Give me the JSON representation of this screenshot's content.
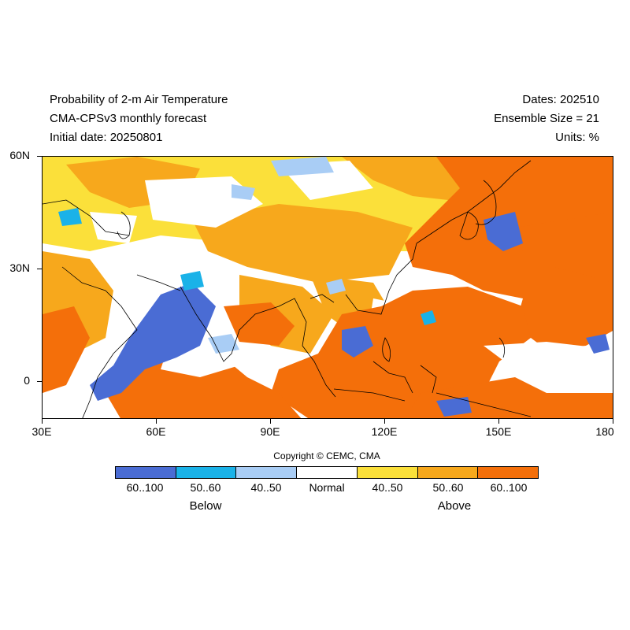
{
  "header": {
    "title": "Probability of 2-m Air Temperature",
    "model": "CMA-CPSv3 monthly forecast",
    "initial_date": "Initial date: 20250801",
    "dates": "Dates: 202510",
    "ensemble": "Ensemble Size = 21",
    "units": "Units: %"
  },
  "axes": {
    "lat_labels": [
      "60N",
      "30N",
      "0"
    ],
    "lon_labels": [
      "30E",
      "60E",
      "90E",
      "120E",
      "150E",
      "180"
    ]
  },
  "copyright": "Copyright © CEMC, CMA",
  "legend": {
    "items": [
      {
        "label": "60..100",
        "color": "#4a6cd4"
      },
      {
        "label": "50..60",
        "color": "#1ab2e8"
      },
      {
        "label": "40..50",
        "color": "#a9cdf5"
      },
      {
        "label": "Normal",
        "color": "#ffffff"
      },
      {
        "label": "40..50",
        "color": "#fbe03a"
      },
      {
        "label": "50..60",
        "color": "#f7a81c"
      },
      {
        "label": "60..100",
        "color": "#f46f0a"
      }
    ],
    "below_label": "Below",
    "above_label": "Above"
  },
  "colors": {
    "below_strong": "#4a6cd4",
    "below_mid": "#1ab2e8",
    "below_weak": "#a9cdf5",
    "normal": "#ffffff",
    "above_weak": "#fbe03a",
    "above_mid": "#f7a81c",
    "above_strong": "#f46f0a",
    "coastline": "#000000"
  }
}
